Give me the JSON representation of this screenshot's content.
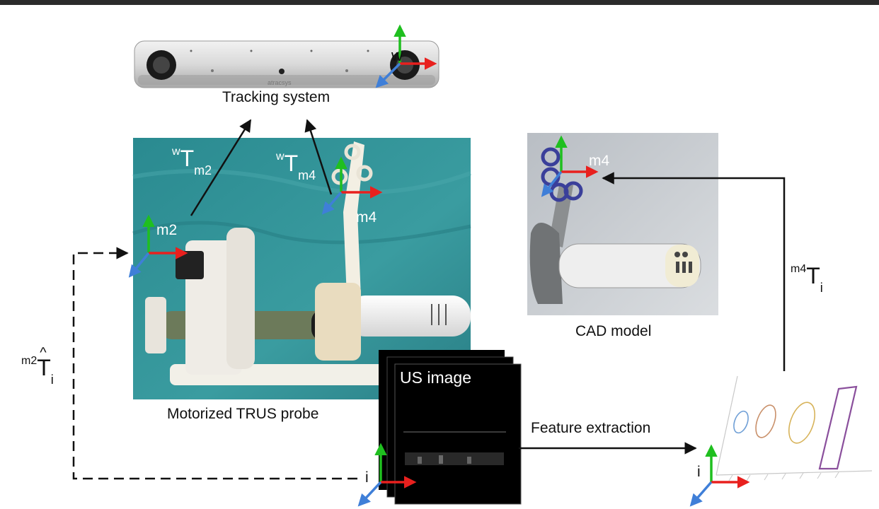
{
  "labels": {
    "tracking_system": "Tracking system",
    "motorized_probe": "Motorized TRUS probe",
    "cad_model": "CAD model",
    "us_image": "US image",
    "feature_extraction": "Feature extraction",
    "frame_w": "w",
    "frame_m2": "m2",
    "frame_m4_photo": "m4",
    "frame_m4_cad": "m4",
    "frame_i_us": "i",
    "frame_i_features": "i",
    "brand": "atracsys"
  },
  "transforms": {
    "w_T_m2": {
      "pre": "w",
      "main": "T",
      "sub": "m2"
    },
    "w_T_m4": {
      "pre": "w",
      "main": "T",
      "sub": "m4"
    },
    "m4_T_i": {
      "pre": "m4",
      "main": "T",
      "sub": "i"
    },
    "m2_That_i": {
      "pre": "m2",
      "hat": "^",
      "main": "T",
      "sub": "i"
    }
  },
  "colors": {
    "axis_x": "#e8201e",
    "axis_y": "#1fbf1f",
    "axis_z": "#3f7fd8",
    "photo_bg": "#2f8e94",
    "cad_bg": "#c5c9ce",
    "ellipse_1": "#6f9fd6",
    "ellipse_2": "#c9906a",
    "ellipse_3": "#d7b35a",
    "slot": "#8a4f9c"
  }
}
